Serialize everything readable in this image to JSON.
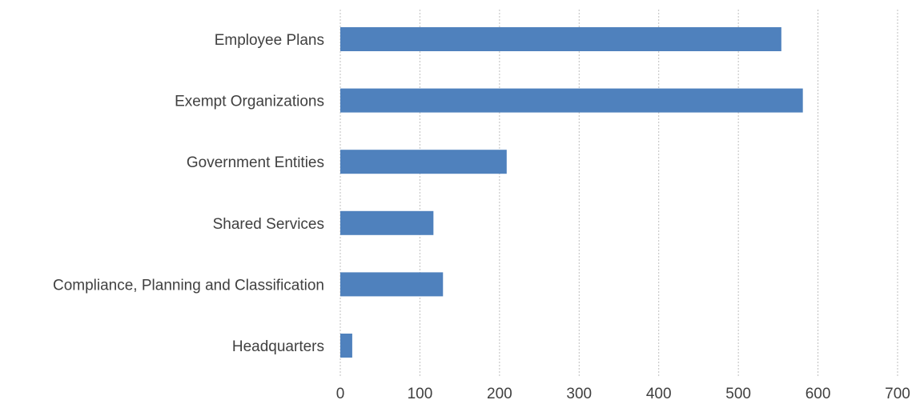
{
  "chart_data": {
    "type": "bar",
    "orientation": "horizontal",
    "title": "",
    "xlabel": "",
    "ylabel": "",
    "categories": [
      "Employee Plans",
      "Exempt Organizations",
      "Government Entities",
      "Shared Services",
      "Compliance, Planning and Classification",
      "Headquarters"
    ],
    "values": [
      554,
      581,
      209,
      117,
      129,
      15
    ],
    "xlim": [
      0,
      700
    ],
    "xticks": [
      "0",
      "100",
      "200",
      "300",
      "400",
      "500",
      "600",
      "700"
    ],
    "grid": "vertical dashed",
    "legend": "none",
    "bar_color": "#4f81bd"
  }
}
